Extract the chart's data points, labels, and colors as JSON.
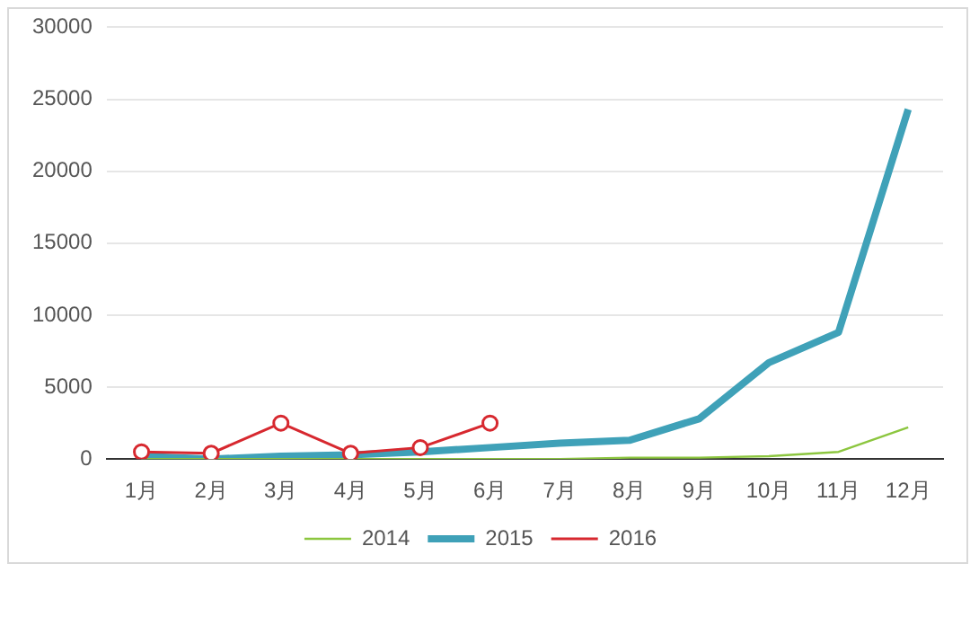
{
  "chart_data": {
    "type": "line",
    "categories": [
      "1月",
      "2月",
      "3月",
      "4月",
      "5月",
      "6月",
      "7月",
      "8月",
      "9月",
      "10月",
      "11月",
      "12月"
    ],
    "series": [
      {
        "name": "2014",
        "color": "#8cc63f",
        "marker": "none",
        "values": [
          0,
          0,
          0,
          0,
          0,
          0,
          0,
          100,
          100,
          200,
          500,
          2200
        ]
      },
      {
        "name": "2015",
        "color": "#3fa1b8",
        "marker": "none",
        "values": [
          200,
          0,
          200,
          300,
          500,
          800,
          1100,
          1300,
          2800,
          6700,
          8800,
          24300
        ]
      },
      {
        "name": "2016",
        "color": "#d7282f",
        "marker": "circle",
        "values": [
          500,
          400,
          2500,
          400,
          800,
          2500,
          null,
          null,
          null,
          null,
          null,
          null
        ]
      }
    ],
    "ylim": [
      0,
      30000
    ],
    "yticks": [
      0,
      5000,
      10000,
      15000,
      20000,
      25000,
      30000
    ],
    "grid": "y",
    "legend": "bottom"
  }
}
